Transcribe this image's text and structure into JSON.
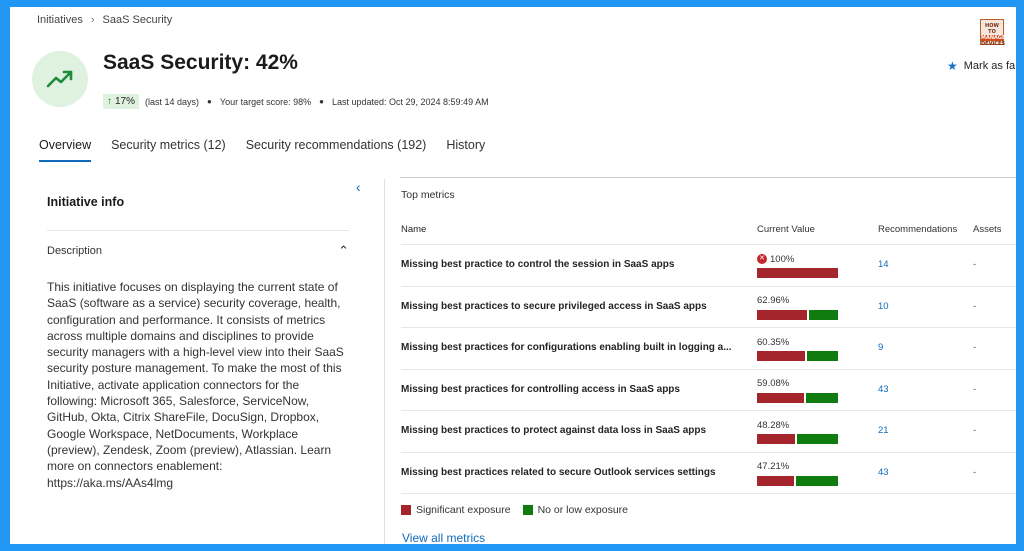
{
  "breadcrumb": {
    "root": "Initiatives",
    "current": "SaaS Security"
  },
  "logo": {
    "line1": "HOW TO",
    "line2": "MANAGE",
    "line3": "DEVICES"
  },
  "header": {
    "title": "SaaS Security: 42%",
    "trend_value": "17%",
    "trend_period": "(last 14 days)",
    "target_score": "Your target score: 98%",
    "last_updated": "Last updated: Oct 29, 2024 8:59:49 AM",
    "favorite_label": "Mark as fa"
  },
  "tabs": [
    {
      "label": "Overview"
    },
    {
      "label": "Security metrics (12)"
    },
    {
      "label": "Security recommendations (192)"
    },
    {
      "label": "History"
    }
  ],
  "initiative_info": {
    "title": "Initiative info",
    "description_label": "Description",
    "description": "This initiative focuses on displaying the current state of SaaS (software as a service) security coverage, health, configuration and performance. It consists of metrics across multiple domains and disciplines to provide security managers with a high-level view into their SaaS security posture management. To make the most of this Initiative, activate application connectors for the following: Microsoft 365, Salesforce, ServiceNow, GitHub, Okta, Citrix ShareFile, DocuSign, Dropbox, Google Workspace, NetDocuments, Workplace (preview), Zendesk, Zoom (preview), Atlassian. Learn more on connectors enablement: https://aka.ms/AAs4lmg"
  },
  "top_metrics": {
    "title": "Top metrics",
    "columns": {
      "name": "Name",
      "value": "Current Value",
      "recs": "Recommendations",
      "assets": "Assets"
    },
    "rows": [
      {
        "name": "Missing best practice to control the session in SaaS apps",
        "value": "100%",
        "fraction": 1.0,
        "recs": "14",
        "assets": "-",
        "error": true
      },
      {
        "name": "Missing best practices to secure privileged access in SaaS apps",
        "value": "62.96%",
        "fraction": 0.6296,
        "recs": "10",
        "assets": "-",
        "error": false
      },
      {
        "name": "Missing best practices for configurations enabling built in logging a...",
        "value": "60.35%",
        "fraction": 0.6035,
        "recs": "9",
        "assets": "-",
        "error": false
      },
      {
        "name": "Missing best practices for controlling access in SaaS apps",
        "value": "59.08%",
        "fraction": 0.5908,
        "recs": "43",
        "assets": "-",
        "error": false
      },
      {
        "name": "Missing best practices to protect against data loss in SaaS apps",
        "value": "48.28%",
        "fraction": 0.4828,
        "recs": "21",
        "assets": "-",
        "error": false
      },
      {
        "name": "Missing best practices related to secure Outlook services settings",
        "value": "47.21%",
        "fraction": 0.4721,
        "recs": "43",
        "assets": "-",
        "error": false
      }
    ],
    "legend": {
      "significant": "Significant exposure",
      "low": "No or low exposure"
    },
    "view_all": "View all metrics"
  },
  "colors": {
    "significant": "#a4262c",
    "low": "#107c10",
    "accent": "#0f6cbd"
  }
}
